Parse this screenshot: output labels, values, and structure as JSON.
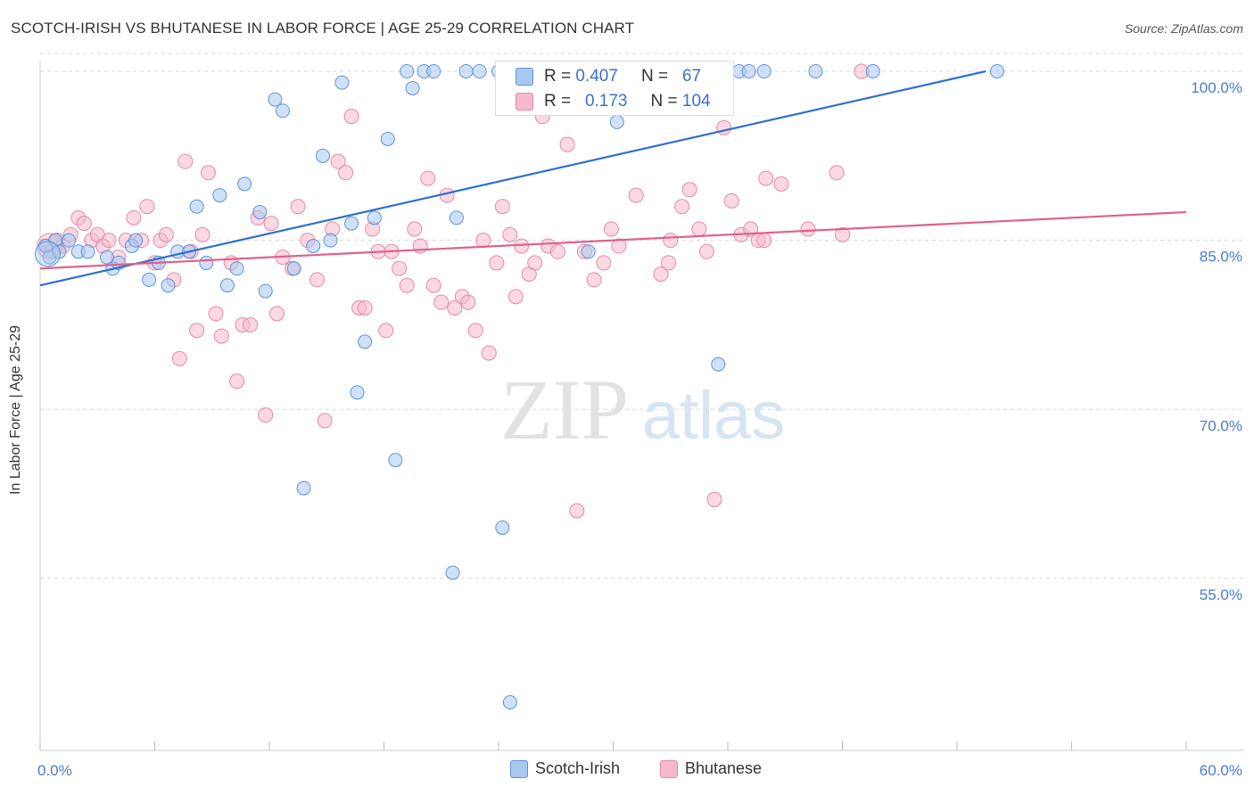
{
  "title": "SCOTCH-IRISH VS BHUTANESE IN LABOR FORCE | AGE 25-29 CORRELATION CHART",
  "source": "Source: ZipAtlas.com",
  "watermark": {
    "zip": "ZIP",
    "atlas": "atlas"
  },
  "colors": {
    "blue_fill": "#a9c8f0",
    "blue_stroke": "#5d93d8",
    "blue_line": "#2f6fcf",
    "pink_fill": "#f6b9cb",
    "pink_stroke": "#e48aa8",
    "pink_line": "#e0608a",
    "tick_label": "#4a7cc9",
    "grid": "#d8d8d8"
  },
  "legend_top": {
    "rows": [
      {
        "r_label": "R =",
        "r_value": "0.407",
        "n_label": "N =",
        "n_value": "67",
        "series": "blue"
      },
      {
        "r_label": "R =",
        "r_value": "0.173",
        "n_label": "N =",
        "n_value": "104",
        "series": "pink"
      }
    ]
  },
  "chart_data": {
    "type": "scatter",
    "title": "SCOTCH-IRISH VS BHUTANESE IN LABOR FORCE | AGE 25-29 CORRELATION CHART",
    "xlabel": "",
    "ylabel": "In Labor Force | Age 25-29",
    "xlim": [
      0,
      60
    ],
    "ylim": [
      40,
      102
    ],
    "x_tick_labels": [
      "0.0%",
      "60.0%"
    ],
    "y_ticks": [
      55,
      70,
      85,
      100
    ],
    "y_tick_labels": [
      "55.0%",
      "70.0%",
      "85.0%",
      "100.0%"
    ],
    "grid": "horizontal dashed",
    "legend_placement": "bottom-center",
    "series": [
      {
        "name": "Scotch-Irish",
        "color": "blue",
        "R": 0.407,
        "N": 67,
        "trend": {
          "x": [
            0,
            49.5
          ],
          "y": [
            81,
            100
          ]
        },
        "points": [
          [
            0.3,
            84.5
          ],
          [
            0.5,
            83.5
          ],
          [
            0.8,
            85
          ],
          [
            1,
            84
          ],
          [
            1.5,
            85
          ],
          [
            2,
            84
          ],
          [
            2.5,
            84
          ],
          [
            3.5,
            83.5
          ],
          [
            3.8,
            82.5
          ],
          [
            4.1,
            83
          ],
          [
            4.8,
            84.5
          ],
          [
            5,
            85
          ],
          [
            5.7,
            81.5
          ],
          [
            6.2,
            83
          ],
          [
            6.7,
            81
          ],
          [
            7.2,
            84
          ],
          [
            7.8,
            84
          ],
          [
            8.2,
            88
          ],
          [
            8.7,
            83
          ],
          [
            9.4,
            89
          ],
          [
            9.8,
            81
          ],
          [
            10.3,
            82.5
          ],
          [
            10.7,
            90
          ],
          [
            11.5,
            87.5
          ],
          [
            11.8,
            80.5
          ],
          [
            12.3,
            97.5
          ],
          [
            12.7,
            96.5
          ],
          [
            13.3,
            82.5
          ],
          [
            13.8,
            63
          ],
          [
            14.3,
            84.5
          ],
          [
            14.8,
            92.5
          ],
          [
            15.2,
            85
          ],
          [
            15.8,
            99
          ],
          [
            16.3,
            86.5
          ],
          [
            16.6,
            71.5
          ],
          [
            17,
            76
          ],
          [
            17.5,
            87
          ],
          [
            18.2,
            94
          ],
          [
            18.6,
            65.5
          ],
          [
            19.2,
            100
          ],
          [
            19.5,
            98.5
          ],
          [
            20.1,
            100
          ],
          [
            20.6,
            100
          ],
          [
            21.6,
            55.5
          ],
          [
            21.8,
            87
          ],
          [
            22.3,
            100
          ],
          [
            23,
            100
          ],
          [
            24,
            100
          ],
          [
            24.2,
            59.5
          ],
          [
            24.6,
            44
          ],
          [
            25.1,
            100
          ],
          [
            25.6,
            100
          ],
          [
            26.2,
            100
          ],
          [
            27,
            100
          ],
          [
            28,
            100
          ],
          [
            28.7,
            84
          ],
          [
            30.2,
            95.5
          ],
          [
            31.4,
            100
          ],
          [
            33.1,
            100
          ],
          [
            34.6,
            100
          ],
          [
            35.5,
            74
          ],
          [
            36.6,
            100
          ],
          [
            37.1,
            100
          ],
          [
            37.9,
            100
          ],
          [
            40.6,
            100
          ],
          [
            43.6,
            100
          ],
          [
            50.1,
            100
          ]
        ]
      },
      {
        "name": "Bhutanese",
        "color": "pink",
        "R": 0.173,
        "N": 104,
        "trend": {
          "x": [
            0,
            60
          ],
          "y": [
            82.5,
            87.5
          ]
        },
        "points": [
          [
            0.3,
            84.5
          ],
          [
            0.6,
            84
          ],
          [
            0.9,
            85
          ],
          [
            1.2,
            84.5
          ],
          [
            1.6,
            85.5
          ],
          [
            2,
            87
          ],
          [
            2.3,
            86.5
          ],
          [
            2.7,
            85
          ],
          [
            3,
            85.5
          ],
          [
            3.3,
            84.5
          ],
          [
            3.6,
            85
          ],
          [
            4.1,
            83.5
          ],
          [
            4.5,
            85
          ],
          [
            4.9,
            87
          ],
          [
            5.3,
            85
          ],
          [
            5.6,
            88
          ],
          [
            6,
            83
          ],
          [
            6.3,
            85
          ],
          [
            6.6,
            85.5
          ],
          [
            7,
            81.5
          ],
          [
            7.3,
            74.5
          ],
          [
            7.6,
            92
          ],
          [
            7.9,
            84
          ],
          [
            8.2,
            77
          ],
          [
            8.5,
            85.5
          ],
          [
            8.8,
            91
          ],
          [
            9.2,
            78.5
          ],
          [
            9.5,
            76.5
          ],
          [
            10,
            83
          ],
          [
            10.3,
            72.5
          ],
          [
            10.6,
            77.5
          ],
          [
            11,
            77.5
          ],
          [
            11.4,
            87
          ],
          [
            11.8,
            69.5
          ],
          [
            12.1,
            86.5
          ],
          [
            12.4,
            78.5
          ],
          [
            12.7,
            83.5
          ],
          [
            13.2,
            82.5
          ],
          [
            13.5,
            88
          ],
          [
            14,
            85
          ],
          [
            14.5,
            81.5
          ],
          [
            14.9,
            69
          ],
          [
            15.3,
            86
          ],
          [
            15.6,
            92
          ],
          [
            16,
            91
          ],
          [
            16.3,
            96
          ],
          [
            16.7,
            79
          ],
          [
            17,
            79
          ],
          [
            17.4,
            86
          ],
          [
            17.7,
            84
          ],
          [
            18.1,
            77
          ],
          [
            18.4,
            84
          ],
          [
            18.8,
            82.5
          ],
          [
            19.2,
            81
          ],
          [
            19.6,
            86
          ],
          [
            19.9,
            84.5
          ],
          [
            20.3,
            90.5
          ],
          [
            20.6,
            81
          ],
          [
            21,
            79.5
          ],
          [
            21.3,
            89
          ],
          [
            21.7,
            79
          ],
          [
            22.1,
            80
          ],
          [
            22.4,
            79.5
          ],
          [
            22.8,
            77
          ],
          [
            23.2,
            85
          ],
          [
            23.5,
            75
          ],
          [
            23.9,
            83
          ],
          [
            24.2,
            88
          ],
          [
            24.6,
            85.5
          ],
          [
            24.9,
            80
          ],
          [
            25.2,
            84.5
          ],
          [
            25.6,
            82
          ],
          [
            25.9,
            83
          ],
          [
            26.3,
            96
          ],
          [
            26.6,
            84.5
          ],
          [
            27.1,
            84
          ],
          [
            27.6,
            93.5
          ],
          [
            28.1,
            61
          ],
          [
            28.5,
            84
          ],
          [
            29,
            81.5
          ],
          [
            29.5,
            83
          ],
          [
            29.9,
            86
          ],
          [
            30.3,
            84.5
          ],
          [
            31.2,
            89
          ],
          [
            32.5,
            82
          ],
          [
            32.9,
            83
          ],
          [
            33,
            85
          ],
          [
            33.6,
            88
          ],
          [
            34,
            89.5
          ],
          [
            34.5,
            86
          ],
          [
            34.9,
            84
          ],
          [
            35.3,
            62
          ],
          [
            35.8,
            95
          ],
          [
            36.2,
            88.5
          ],
          [
            36.7,
            85.5
          ],
          [
            37.2,
            86
          ],
          [
            37.6,
            85
          ],
          [
            37.9,
            85
          ],
          [
            38,
            90.5
          ],
          [
            38.8,
            90
          ],
          [
            40.2,
            86
          ],
          [
            41.7,
            91
          ],
          [
            42,
            85.5
          ],
          [
            43,
            100
          ]
        ]
      }
    ]
  },
  "legend_bottom": [
    {
      "label": "Scotch-Irish",
      "series": "blue"
    },
    {
      "label": "Bhutanese",
      "series": "pink"
    }
  ]
}
